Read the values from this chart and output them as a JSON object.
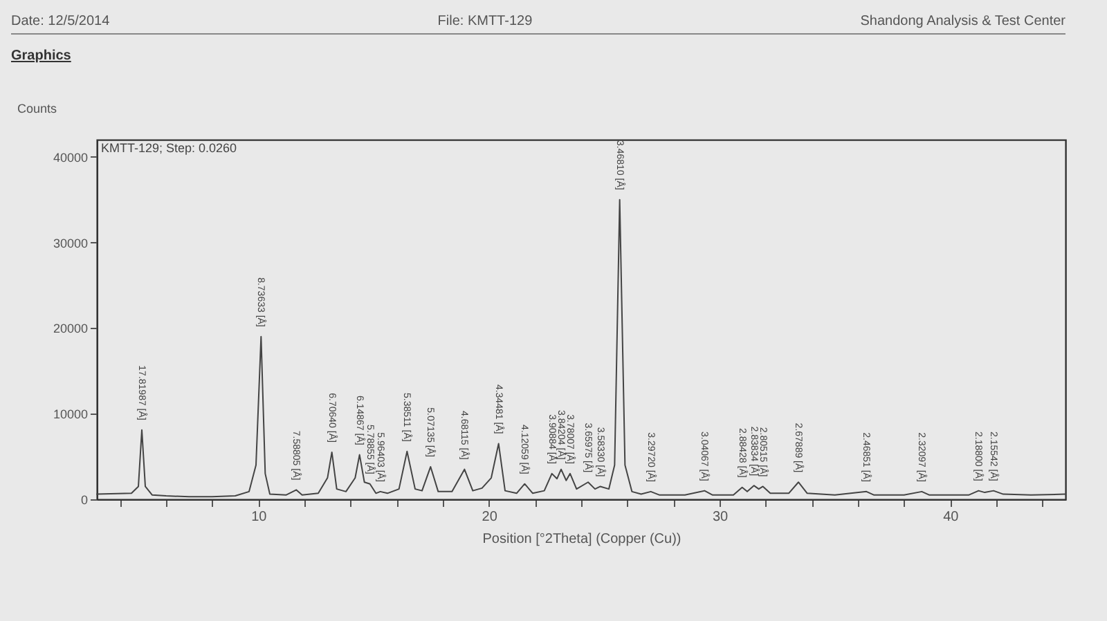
{
  "chart_data": {
    "type": "line",
    "title": "Graphics",
    "xlabel": "Position [°2Theta] (Copper (Cu))",
    "ylabel": "Counts",
    "xlim": [
      3,
      45
    ],
    "ylim": [
      0,
      42000
    ],
    "xticks": [
      {
        "value": 4,
        "label": null
      },
      {
        "value": 6,
        "label": null
      },
      {
        "value": 8,
        "label": null
      },
      10,
      {
        "value": 12,
        "label": null
      },
      {
        "value": 14,
        "label": null
      },
      {
        "value": 16,
        "label": null
      },
      {
        "value": 18,
        "label": null
      },
      20,
      {
        "value": 22,
        "label": null
      },
      {
        "value": 24,
        "label": null
      },
      {
        "value": 26,
        "label": null
      },
      {
        "value": 28,
        "label": null
      },
      30,
      {
        "value": 32,
        "label": null
      },
      {
        "value": 34,
        "label": null
      },
      {
        "value": 36,
        "label": null
      },
      {
        "value": 38,
        "label": null
      },
      40,
      {
        "value": 42,
        "label": null
      },
      {
        "value": 44,
        "label": null
      }
    ],
    "yticks": [
      0,
      10000,
      20000,
      30000,
      40000
    ],
    "grid": false,
    "marker": "none",
    "line_style": "solid",
    "series": [
      {
        "color": "#444444",
        "x": [
          3.0,
          4.5,
          4.8,
          4.95,
          5.1,
          5.4,
          6,
          7,
          8,
          9,
          9.6,
          9.9,
          10.12,
          10.3,
          10.5,
          11.2,
          11.65,
          11.9,
          12.6,
          13.0,
          13.19,
          13.4,
          13.8,
          14.2,
          14.39,
          14.6,
          14.84,
          15.1,
          15.29,
          15.6,
          16.1,
          16.45,
          16.8,
          17.1,
          17.47,
          17.8,
          18.4,
          18.94,
          19.3,
          19.7,
          20.1,
          20.42,
          20.7,
          21.2,
          21.55,
          21.9,
          22.4,
          22.73,
          22.95,
          23.13,
          23.35,
          23.52,
          23.8,
          24.3,
          24.6,
          24.83,
          25.2,
          25.45,
          25.67,
          25.9,
          26.2,
          26.6,
          27.02,
          27.4,
          28.5,
          29.35,
          29.7,
          30.6,
          30.98,
          31.2,
          31.49,
          31.7,
          31.88,
          32.2,
          33.0,
          33.42,
          33.8,
          35,
          36.37,
          36.7,
          38,
          38.77,
          39.1,
          40.8,
          41.23,
          41.5,
          41.88,
          42.3,
          43.5,
          45
        ],
        "values": [
          600,
          700,
          1500,
          8100,
          1500,
          500,
          400,
          300,
          300,
          400,
          900,
          4000,
          19000,
          3000,
          600,
          500,
          1100,
          500,
          700,
          2500,
          5500,
          1200,
          900,
          2500,
          5200,
          2000,
          1800,
          700,
          900,
          700,
          1200,
          5600,
          1200,
          1000,
          3800,
          900,
          900,
          3500,
          1000,
          1300,
          2500,
          6500,
          1000,
          700,
          1800,
          700,
          1000,
          3000,
          2400,
          3500,
          2200,
          3000,
          1200,
          2000,
          1200,
          1500,
          1200,
          4000,
          35000,
          4000,
          900,
          600,
          900,
          500,
          500,
          1000,
          500,
          500,
          1400,
          900,
          1600,
          1200,
          1500,
          700,
          700,
          2000,
          700,
          500,
          900,
          500,
          500,
          900,
          500,
          500,
          1000,
          800,
          1000,
          600,
          500,
          600
        ]
      }
    ],
    "annotations": [
      "Date: 12/5/2014",
      "File: KMTT-129",
      "Shandong Analysis & Test Center",
      "KMTT-129; Step: 0.0260",
      {
        "text": "17.81987 [Å]",
        "x": 4.95,
        "y": 8100
      },
      {
        "text": "8.73633 [Å]",
        "x": 10.12,
        "y": 19000
      },
      {
        "text": "7.58805 [Å]",
        "x": 11.65,
        "y": 1100
      },
      {
        "text": "6.70640 [Å]",
        "x": 13.19,
        "y": 5500
      },
      {
        "text": "6.14867 [Å]",
        "x": 14.39,
        "y": 5200
      },
      {
        "text": "5.78855 [Å]",
        "x": 14.84,
        "y": 1800
      },
      {
        "text": "5.96403 [Å]",
        "x": 15.29,
        "y": 900
      },
      {
        "text": "5.38511 [Å]",
        "x": 16.45,
        "y": 5600
      },
      {
        "text": "5.07135 [Å]",
        "x": 17.47,
        "y": 3800
      },
      {
        "text": "4.68115 [Å]",
        "x": 18.94,
        "y": 3500
      },
      {
        "text": "4.34481 [Å]",
        "x": 20.42,
        "y": 6500
      },
      {
        "text": "4.12059 [Å]",
        "x": 21.55,
        "y": 1800
      },
      {
        "text": "3.90884 [Å]",
        "x": 22.73,
        "y": 3000
      },
      {
        "text": "3.84204 [Å]",
        "x": 23.13,
        "y": 3500
      },
      {
        "text": "3.78007 [Å]",
        "x": 23.52,
        "y": 3000
      },
      {
        "text": "3.65975 [Å]",
        "x": 24.3,
        "y": 2000
      },
      {
        "text": "3.58330 [Å]",
        "x": 24.83,
        "y": 1500
      },
      {
        "text": "3.46810 [Å]",
        "x": 25.67,
        "y": 35000
      },
      {
        "text": "3.29720 [Å]",
        "x": 27.02,
        "y": 900
      },
      {
        "text": "3.04067 [Å]",
        "x": 29.35,
        "y": 1000
      },
      {
        "text": "2.88428 [Å]",
        "x": 30.98,
        "y": 1400
      },
      {
        "text": "2.83834 [Å]",
        "x": 31.49,
        "y": 1600
      },
      {
        "text": "2.80515 [Å]",
        "x": 31.88,
        "y": 1500
      },
      {
        "text": "2.67889 [Å]",
        "x": 33.42,
        "y": 2000
      },
      {
        "text": "2.46851 [Å]",
        "x": 36.37,
        "y": 900
      },
      {
        "text": "2.32097 [Å]",
        "x": 38.77,
        "y": 900
      },
      {
        "text": "2.18800 [Å]",
        "x": 41.23,
        "y": 1000
      },
      {
        "text": "2.15542 [Å]",
        "x": 41.88,
        "y": 1000
      }
    ]
  }
}
